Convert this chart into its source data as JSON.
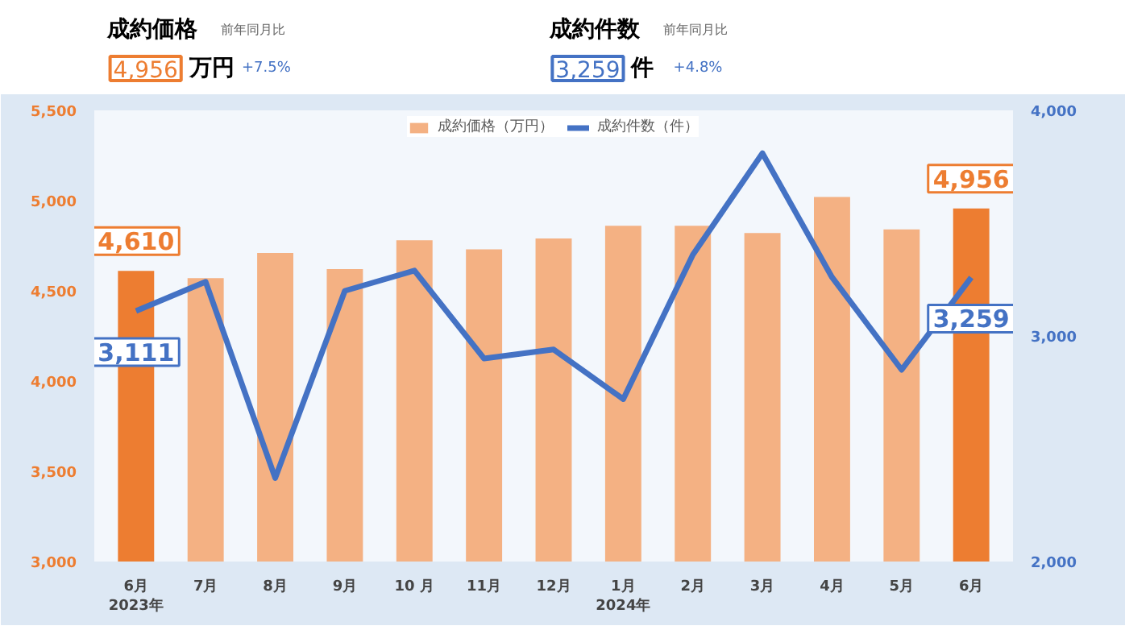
{
  "chart_data": {
    "type": "bar",
    "categories": [
      "6月\n2023年",
      "7月",
      "8月",
      "9月",
      "10 月",
      "11月",
      "12月",
      "1月\n2024年",
      "2月",
      "3月",
      "4月",
      "5月",
      "6月"
    ],
    "series": [
      {
        "name": "成約価格（万円）",
        "color": "#f4b183",
        "colors": [
          "#ed7d31",
          "#f4b183",
          "#f4b183",
          "#f4b183",
          "#f4b183",
          "#f4b183",
          "#f4b183",
          "#f4b183",
          "#f4b183",
          "#f4b183",
          "#f4b183",
          "#f4b183",
          "#ed7d31"
        ],
        "values": [
          4610,
          4570,
          4710,
          4620,
          4780,
          4730,
          4790,
          4860,
          4860,
          4820,
          5020,
          4840,
          4956
        ],
        "value_labels": [
          "4,610",
          null,
          null,
          null,
          null,
          null,
          null,
          null,
          null,
          null,
          null,
          null,
          "4,956"
        ]
      },
      {
        "name": "成約件数（件）",
        "type": "line",
        "axis": "y2",
        "color": "#4472c4",
        "values": [
          3111,
          3240,
          2370,
          3200,
          3290,
          2900,
          2940,
          2720,
          3360,
          3810,
          3260,
          2850,
          3259
        ],
        "value_labels": [
          "3,111",
          null,
          null,
          null,
          null,
          null,
          null,
          null,
          null,
          null,
          null,
          null,
          "3,259"
        ]
      }
    ],
    "ylim": [
      3000,
      5500
    ],
    "yticks": [
      {
        "value": 3000,
        "label": "3,000"
      },
      {
        "value": 3500,
        "label": "3,500"
      },
      {
        "value": 4000,
        "label": "4,000"
      },
      {
        "value": 4500,
        "label": "4,500"
      },
      {
        "value": 5000,
        "label": "5,000"
      },
      {
        "value": 5500,
        "label": "5,500"
      }
    ],
    "y2lim": [
      2000,
      4000
    ],
    "y2ticks": [
      {
        "value": 2000,
        "label": "2,000"
      },
      {
        "value": 3000,
        "label": "3,000"
      },
      {
        "value": 4000,
        "label": "4,000"
      }
    ],
    "legend": "top",
    "grid": false,
    "marker": "none",
    "line_style": "solid",
    "annotations": [
      "成約価格",
      "前年同月比",
      "4,956",
      "万円",
      "+7.5%",
      "成約件数",
      "前年同月比",
      "3,259",
      "件",
      "+4.8%"
    ]
  }
}
